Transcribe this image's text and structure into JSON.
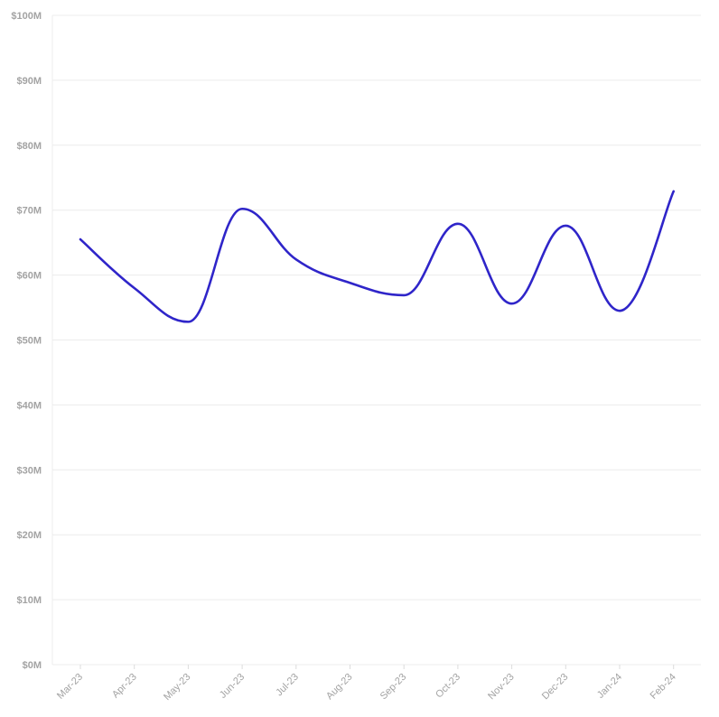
{
  "chart_data": {
    "type": "line",
    "categories": [
      "Mar-23",
      "Apr-23",
      "May-23",
      "Jun-23",
      "Jul-23",
      "Aug-23",
      "Sep-23",
      "Oct-23",
      "Nov-23",
      "Dec-23",
      "Jan-24",
      "Feb-24"
    ],
    "series": [
      {
        "values": [
          65.5,
          58.0,
          52.8,
          70.2,
          62.4,
          58.8,
          56.9,
          67.9,
          55.6,
          67.6,
          54.5,
          72.9
        ]
      }
    ],
    "y_tick_labels": [
      "$0M",
      "$10M",
      "$20M",
      "$30M",
      "$40M",
      "$50M",
      "$60M",
      "$70M",
      "$80M",
      "$90M",
      "$100M"
    ],
    "ylim": [
      0,
      100
    ],
    "y_unit": "$M",
    "grid": "horizontal",
    "line_color": "#2f25c9",
    "title": "",
    "xlabel": "",
    "ylabel": ""
  }
}
